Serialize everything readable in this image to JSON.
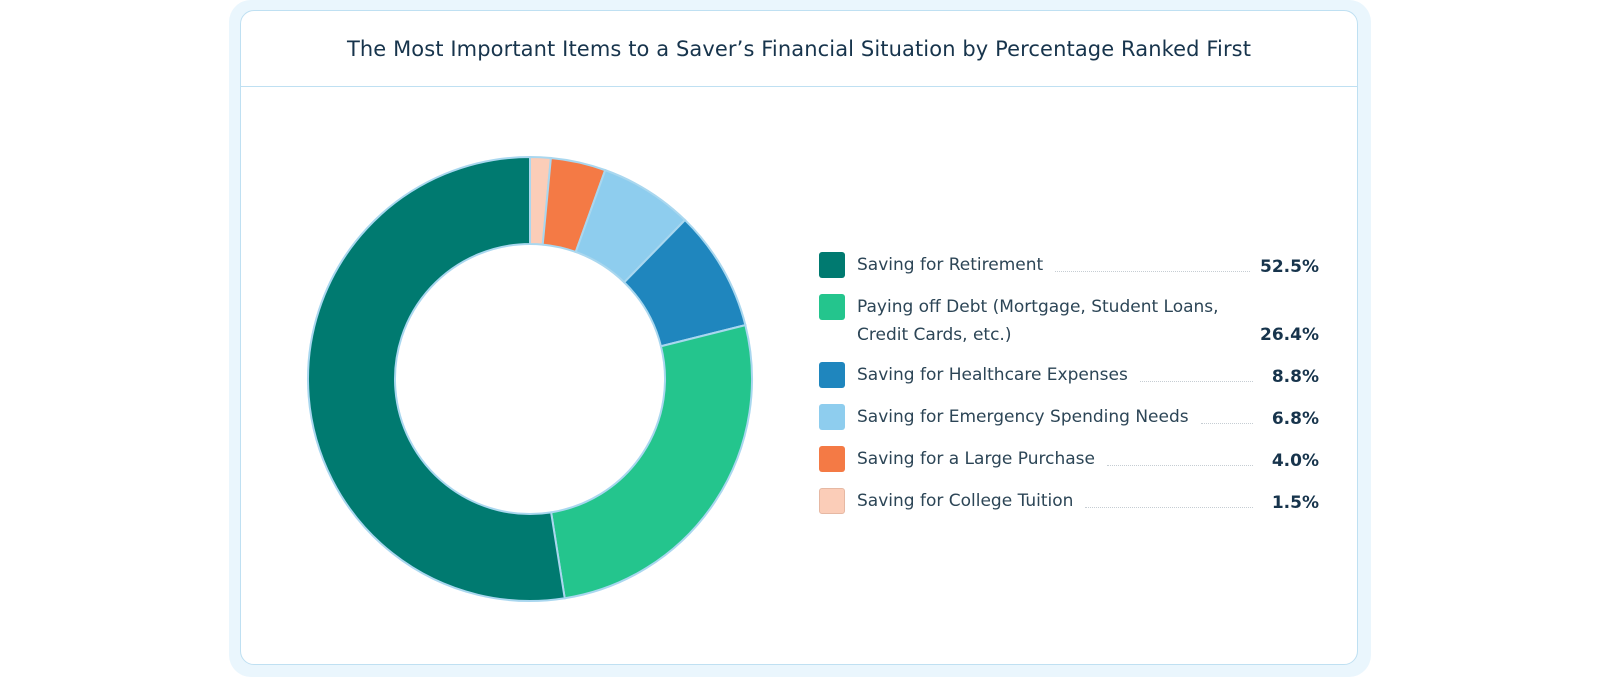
{
  "chart_data": {
    "type": "pie",
    "title": "The Most Important Items to a Saver’s Financial Situation by Percentage Ranked First",
    "donut": true,
    "legend_position": "right",
    "slices": [
      {
        "label": "Saving for Retirement",
        "value": 52.5,
        "value_label": "52.5%",
        "color": "#007a70"
      },
      {
        "label": "Paying off Debt (Mortgage, Student Loans, Credit Cards, etc.)",
        "value": 26.4,
        "value_label": "26.4%",
        "color": "#24c58d"
      },
      {
        "label": "Saving for Healthcare Expenses",
        "value": 8.8,
        "value_label": "8.8%",
        "color": "#1f86be"
      },
      {
        "label": "Saving for Emergency Spending Needs",
        "value": 6.8,
        "value_label": "6.8%",
        "color": "#8ecdee"
      },
      {
        "label": "Saving for a Large Purchase",
        "value": 4.0,
        "value_label": "4.0%",
        "color": "#f47a45"
      },
      {
        "label": "Saving for College Tuition",
        "value": 1.5,
        "value_label": "1.5%",
        "color": "#fbcdb8"
      }
    ]
  }
}
